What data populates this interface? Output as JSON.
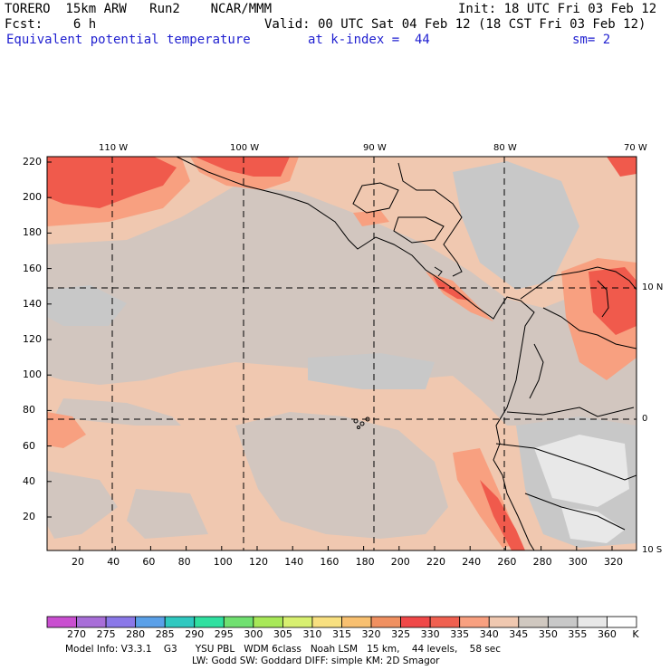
{
  "header": {
    "model": "TORERO  15km ARW   Run2    NCAR/MMM",
    "init": "Init: 18 UTC Fri 03 Feb 12",
    "fcst": "Fcst:    6 h",
    "valid": "Valid: 00 UTC Sat 04 Feb 12 (18 CST Fri 03 Feb 12)",
    "field": "Equivalent potential temperature",
    "level": "at k-index =  44",
    "smooth": "sm= 2"
  },
  "map": {
    "lon_labels": [
      "110 W",
      "100 W",
      "90 W",
      "80 W",
      "70 W"
    ],
    "lat_labels": [
      "10 N",
      "0",
      "10 S"
    ],
    "x_ticks": [
      "20",
      "40",
      "60",
      "80",
      "100",
      "120",
      "140",
      "160",
      "180",
      "200",
      "220",
      "240",
      "260",
      "280",
      "300",
      "320"
    ],
    "y_ticks": [
      "20",
      "40",
      "60",
      "80",
      "100",
      "120",
      "140",
      "160",
      "180",
      "200",
      "220"
    ]
  },
  "colorbar": {
    "unit": "K",
    "labels": [
      "270",
      "275",
      "280",
      "285",
      "290",
      "295",
      "300",
      "305",
      "310",
      "315",
      "320",
      "325",
      "330",
      "335",
      "340",
      "345",
      "350",
      "355",
      "360"
    ],
    "colors": [
      "#c94fd0",
      "#a86ed8",
      "#8a78e8",
      "#5aa0e8",
      "#30c8c0",
      "#30e0a0",
      "#70e070",
      "#a8e858",
      "#d8f070",
      "#f8e080",
      "#f8c070",
      "#f09060",
      "#f04848",
      "#f06050",
      "#f8a080",
      "#f0c8b0",
      "#d0c8c0",
      "#c8c8c8",
      "#e8e8e8",
      "#ffffff"
    ]
  },
  "footer": {
    "line1": "Model Info: V3.3.1    G3      YSU PBL   WDM 6class   Noah LSM   15 km,    44 levels,    58 sec",
    "line2": "LW: Godd SW: Goddard DIFF: simple KM: 2D Smagor"
  }
}
